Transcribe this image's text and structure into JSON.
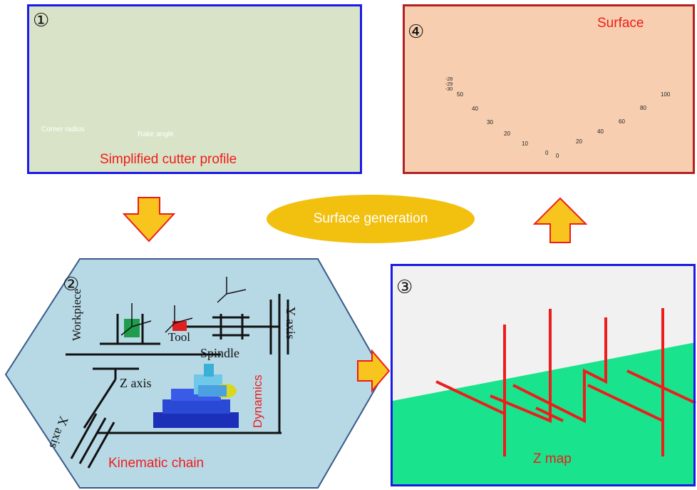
{
  "panel1": {
    "number": "①",
    "corner_radius_label": "Corner radius",
    "rake_angle_label": "Rake angle",
    "caption": "Simplified cutter profile"
  },
  "panel2": {
    "number": "②",
    "workpiece": "Workpiece",
    "tool": "Tool",
    "spindle": "Spindle",
    "y_axis": "Y axis",
    "z_axis": "Z axis",
    "x_axis": "X axis",
    "dynamics": "Dynamics",
    "caption": "Kinematic chain"
  },
  "panel3": {
    "number": "③",
    "caption": "Z map"
  },
  "panel4": {
    "number": "④",
    "title": "Surface",
    "z_ticks": [
      "-28",
      "-29",
      "-30"
    ],
    "x_ticks": [
      "0",
      "10",
      "20",
      "30",
      "40",
      "50"
    ],
    "y_ticks": [
      "0",
      "20",
      "40",
      "60",
      "80",
      "100"
    ],
    "bottom_ticks": [
      "0",
      "0"
    ]
  },
  "center": {
    "label": "Surface generation"
  },
  "colors": {
    "red": "#ee1c1c",
    "blue_border": "#1a1ae6",
    "dark_red_border": "#b22222",
    "arrow_fill": "#f7c51e",
    "arrow_outline": "#ee1c1c",
    "ellipse": "#f2c00f",
    "zmap_green": "#19e38c",
    "hexagon": "#b7d9e6"
  }
}
